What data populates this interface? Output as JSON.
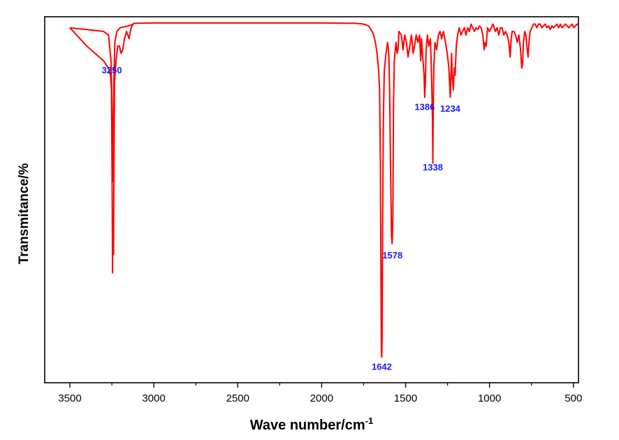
{
  "chart_data": {
    "type": "line",
    "title": "",
    "xlabel": "Wave number/cm",
    "xlabel_sup": "-1",
    "ylabel": "Transmitance/%",
    "xlim": [
      3650,
      470
    ],
    "ylim": [
      0,
      100
    ],
    "x_reversed": true,
    "y_tick_labels": false,
    "x_ticks": [
      3500,
      3000,
      2500,
      2000,
      1500,
      1000,
      500
    ],
    "x_tick_labels": [
      "3500",
      "3000",
      "2500",
      "2000",
      "1500",
      "1000",
      "500"
    ],
    "line_color": "#ff0000",
    "label_color": "#1a1aff",
    "series": [
      {
        "values": [
          [
            3500,
            97
          ],
          [
            3400,
            92
          ],
          [
            3300,
            88
          ],
          [
            3270,
            86
          ],
          [
            3258,
            84
          ],
          [
            3252,
            80
          ],
          [
            3248,
            50
          ],
          [
            3246,
            30
          ],
          [
            3244,
            42
          ],
          [
            3242,
            40
          ],
          [
            3240,
            35
          ],
          [
            3238,
            55
          ],
          [
            3234,
            82
          ],
          [
            3225,
            88
          ],
          [
            3215,
            92
          ],
          [
            3205,
            92
          ],
          [
            3195,
            90
          ],
          [
            3185,
            91
          ],
          [
            3175,
            94
          ],
          [
            3162,
            96
          ],
          [
            3148,
            94
          ],
          [
            3135,
            97
          ],
          [
            3120,
            98.2
          ],
          [
            3000,
            98.3
          ],
          [
            2000,
            98.3
          ],
          [
            1800,
            98.2
          ],
          [
            1750,
            98
          ],
          [
            1720,
            97.5
          ],
          [
            1700,
            96
          ],
          [
            1690,
            95
          ],
          [
            1680,
            93
          ],
          [
            1670,
            90
          ],
          [
            1660,
            85
          ],
          [
            1655,
            80
          ],
          [
            1650,
            60
          ],
          [
            1646,
            20
          ],
          [
            1644,
            8
          ],
          [
            1642,
            7
          ],
          [
            1640,
            12
          ],
          [
            1637,
            40
          ],
          [
            1633,
            70
          ],
          [
            1627,
            85
          ],
          [
            1617,
            90
          ],
          [
            1607,
            93
          ],
          [
            1600,
            90
          ],
          [
            1595,
            80
          ],
          [
            1590,
            60
          ],
          [
            1584,
            40
          ],
          [
            1580,
            38
          ],
          [
            1576,
            45
          ],
          [
            1572,
            75
          ],
          [
            1567,
            88
          ],
          [
            1557,
            93
          ],
          [
            1550,
            90
          ],
          [
            1545,
            91
          ],
          [
            1540,
            96
          ],
          [
            1525,
            95
          ],
          [
            1515,
            91
          ],
          [
            1505,
            95
          ],
          [
            1495,
            93
          ],
          [
            1485,
            89
          ],
          [
            1475,
            92
          ],
          [
            1465,
            95
          ],
          [
            1455,
            90
          ],
          [
            1447,
            92
          ],
          [
            1437,
            95
          ],
          [
            1427,
            93
          ],
          [
            1417,
            95
          ],
          [
            1410,
            88
          ],
          [
            1405,
            94
          ],
          [
            1398,
            89
          ],
          [
            1390,
            84
          ],
          [
            1386,
            78
          ],
          [
            1382,
            82
          ],
          [
            1378,
            91
          ],
          [
            1370,
            95
          ],
          [
            1362,
            92
          ],
          [
            1352,
            94
          ],
          [
            1345,
            83
          ],
          [
            1340,
            72
          ],
          [
            1338,
            60
          ],
          [
            1336,
            70
          ],
          [
            1332,
            86
          ],
          [
            1325,
            93
          ],
          [
            1315,
            91
          ],
          [
            1305,
            95
          ],
          [
            1295,
            96
          ],
          [
            1285,
            94
          ],
          [
            1275,
            96
          ],
          [
            1262,
            93
          ],
          [
            1252,
            90
          ],
          [
            1242,
            86
          ],
          [
            1236,
            80
          ],
          [
            1234,
            78
          ],
          [
            1232,
            80
          ],
          [
            1226,
            90
          ],
          [
            1222,
            84
          ],
          [
            1216,
            80
          ],
          [
            1210,
            86
          ],
          [
            1205,
            84
          ],
          [
            1198,
            92
          ],
          [
            1190,
            95
          ],
          [
            1180,
            97
          ],
          [
            1170,
            95
          ],
          [
            1160,
            96
          ],
          [
            1150,
            97
          ],
          [
            1140,
            95
          ],
          [
            1130,
            97
          ],
          [
            1120,
            96
          ],
          [
            1110,
            98
          ],
          [
            1100,
            97
          ],
          [
            1090,
            96
          ],
          [
            1080,
            97
          ],
          [
            1070,
            96.5
          ],
          [
            1060,
            97.5
          ],
          [
            1050,
            97
          ],
          [
            1040,
            95
          ],
          [
            1032,
            91
          ],
          [
            1026,
            93
          ],
          [
            1020,
            92
          ],
          [
            1012,
            97
          ],
          [
            1000,
            96
          ],
          [
            990,
            97
          ],
          [
            980,
            98
          ],
          [
            965,
            96
          ],
          [
            955,
            97
          ],
          [
            945,
            95
          ],
          [
            935,
            97
          ],
          [
            925,
            97
          ],
          [
            915,
            95
          ],
          [
            905,
            96
          ],
          [
            895,
            95
          ],
          [
            885,
            93
          ],
          [
            877,
            89
          ],
          [
            871,
            94
          ],
          [
            865,
            96
          ],
          [
            855,
            96
          ],
          [
            845,
            95
          ],
          [
            835,
            93
          ],
          [
            825,
            95
          ],
          [
            815,
            91
          ],
          [
            808,
            86
          ],
          [
            803,
            87
          ],
          [
            798,
            93
          ],
          [
            790,
            96
          ],
          [
            783,
            95
          ],
          [
            778,
            92
          ],
          [
            770,
            89
          ],
          [
            765,
            93
          ],
          [
            758,
            96
          ],
          [
            748,
            97
          ],
          [
            738,
            98
          ],
          [
            728,
            98
          ],
          [
            718,
            97
          ],
          [
            708,
            98
          ],
          [
            698,
            98
          ],
          [
            688,
            97
          ],
          [
            678,
            97.5
          ],
          [
            668,
            98
          ],
          [
            658,
            97
          ],
          [
            648,
            97.5
          ],
          [
            638,
            96.5
          ],
          [
            628,
            97.5
          ],
          [
            618,
            97
          ],
          [
            608,
            97.5
          ],
          [
            598,
            98
          ],
          [
            588,
            97
          ],
          [
            578,
            98
          ],
          [
            568,
            97
          ],
          [
            558,
            97.5
          ],
          [
            548,
            98
          ],
          [
            538,
            97.5
          ],
          [
            528,
            97
          ],
          [
            518,
            97.5
          ],
          [
            508,
            98
          ],
          [
            498,
            97
          ],
          [
            488,
            97.5
          ],
          [
            478,
            98
          ],
          [
            470,
            97.5
          ]
        ]
      },
      {
        "values": [
          [
            3500,
            97
          ],
          [
            3300,
            96
          ],
          [
            3270,
            95
          ],
          [
            3255,
            88
          ],
          [
            3250,
            78
          ],
          [
            3246,
            60
          ],
          [
            3244,
            55
          ],
          [
            3242,
            65
          ],
          [
            3238,
            82
          ],
          [
            3232,
            93
          ],
          [
            3220,
            96
          ],
          [
            3200,
            97
          ],
          [
            3150,
            97.5
          ],
          [
            3120,
            98
          ]
        ]
      }
    ],
    "annotations": [
      {
        "text": "3250",
        "x": 3250,
        "y": 84.5
      },
      {
        "text": "1642",
        "x": 1642,
        "y": 3.5
      },
      {
        "text": "1578",
        "x": 1578,
        "y": 34
      },
      {
        "text": "1386",
        "x": 1386,
        "y": 74.5
      },
      {
        "text": "1234",
        "x": 1234,
        "y": 74
      },
      {
        "text": "1338",
        "x": 1338,
        "y": 58
      }
    ]
  }
}
